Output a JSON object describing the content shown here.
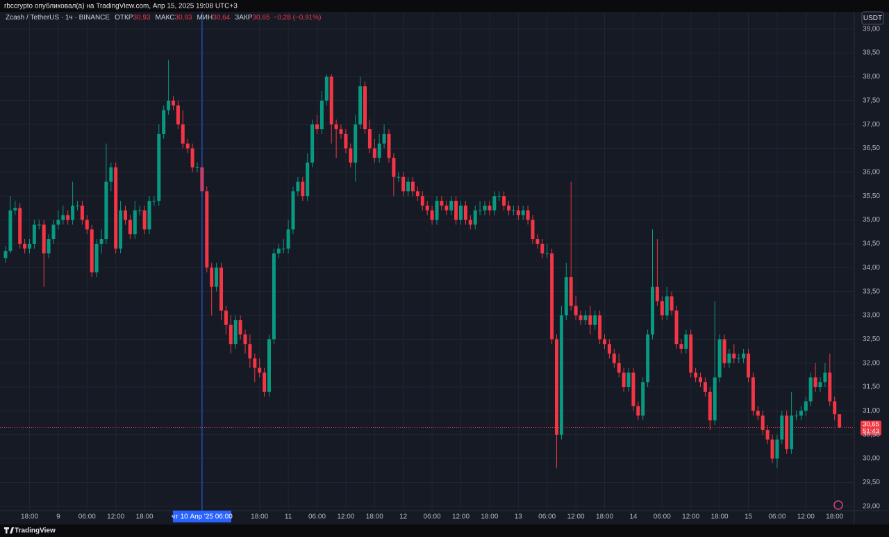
{
  "header": {
    "text": "rbccrypto опубликовал(а) на TradingView.com, Апр 15, 2025 19:08 UTC+3"
  },
  "footer": {
    "brand": "TradingView"
  },
  "chart_data": {
    "type": "candlestick",
    "symbol": "Zcash / TetherUS · 1ч · BINANCE",
    "legend_items": [
      {
        "name": "ОТКР",
        "value": 30.93,
        "label": "30,93"
      },
      {
        "name": "МАКС",
        "value": 30.93,
        "label": "30,93"
      },
      {
        "name": "МИН",
        "value": 30.64,
        "label": "30,64"
      },
      {
        "name": "ЗАКР",
        "value": 30.65,
        "label": "30,65"
      }
    ],
    "change": {
      "value": -0.28,
      "label": "−0,28 (−0,91%)"
    },
    "currency": "USDT",
    "price_tag": {
      "value": 30.65,
      "label": "30,65",
      "countdown": "51:43"
    },
    "up_color": "#089981",
    "down_color": "#f23645",
    "grid": true,
    "categories": [
      null,
      null,
      null,
      null,
      null,
      "18:00",
      null,
      null,
      null,
      null,
      null,
      "9",
      null,
      null,
      null,
      null,
      null,
      "06:00",
      null,
      null,
      null,
      null,
      null,
      "12:00",
      null,
      null,
      null,
      null,
      null,
      "18:00",
      null,
      null,
      null,
      null,
      null,
      null,
      null,
      null,
      null,
      null,
      null,
      "чт 10 Апр '25 06:00",
      null,
      null,
      null,
      null,
      null,
      null,
      null,
      null,
      null,
      null,
      null,
      "18:00",
      null,
      null,
      null,
      null,
      null,
      "11",
      null,
      null,
      null,
      null,
      null,
      "06:00",
      null,
      null,
      null,
      null,
      null,
      "12:00",
      null,
      null,
      null,
      null,
      null,
      "18:00",
      null,
      null,
      null,
      null,
      null,
      "12",
      null,
      null,
      null,
      null,
      null,
      "06:00",
      null,
      null,
      null,
      null,
      null,
      "12:00",
      null,
      null,
      null,
      null,
      null,
      "18:00",
      null,
      null,
      null,
      null,
      null,
      "13",
      null,
      null,
      null,
      null,
      null,
      "06:00",
      null,
      null,
      null,
      null,
      null,
      "12:00",
      null,
      null,
      null,
      null,
      null,
      "18:00",
      null,
      null,
      null,
      null,
      null,
      "14",
      null,
      null,
      null,
      null,
      null,
      "06:00",
      null,
      null,
      null,
      null,
      null,
      "12:00",
      null,
      null,
      null,
      null,
      null,
      "18:00",
      null,
      null,
      null,
      null,
      null,
      "15",
      null,
      null,
      null,
      null,
      null,
      "06:00",
      null,
      null,
      null,
      null,
      null,
      "12:00",
      null,
      null,
      null,
      null,
      null,
      "18:00",
      null
    ],
    "open": [
      34.2,
      34.35,
      35.2,
      35.25,
      34.5,
      34.4,
      34.5,
      34.9,
      34.9,
      34.3,
      34.6,
      34.9,
      35.0,
      35.1,
      35.0,
      35.3,
      35.3,
      35.0,
      34.8,
      33.9,
      34.5,
      34.6,
      35.8,
      36.1,
      34.4,
      35.2,
      35.0,
      34.7,
      35.2,
      35.2,
      34.8,
      35.4,
      35.4,
      36.8,
      37.3,
      37.5,
      37.4,
      37.0,
      36.6,
      36.5,
      36.1,
      36.1,
      35.6,
      34.0,
      33.6,
      34.0,
      33.1,
      32.8,
      32.4,
      32.9,
      32.6,
      32.4,
      32.1,
      31.9,
      31.8,
      31.4,
      32.5,
      34.3,
      34.4,
      34.4,
      34.8,
      35.6,
      35.8,
      35.5,
      36.2,
      37.0,
      36.9,
      37.5,
      38.0,
      37.0,
      36.9,
      36.8,
      36.5,
      36.2,
      37.0,
      37.8,
      36.9,
      36.5,
      36.3,
      36.6,
      36.8,
      36.3,
      35.9,
      35.9,
      35.6,
      35.8,
      35.6,
      35.5,
      35.3,
      35.2,
      35.0,
      35.4,
      35.3,
      35.2,
      35.4,
      35.0,
      35.3,
      35.0,
      34.9,
      35.2,
      35.2,
      35.3,
      35.2,
      35.5,
      35.5,
      35.3,
      35.2,
      35.2,
      35.1,
      35.2,
      35.0,
      34.6,
      34.5,
      34.3,
      34.3,
      32.5,
      30.5,
      33.0,
      33.8,
      33.2,
      33.0,
      32.9,
      33.0,
      32.8,
      33.0,
      32.5,
      32.4,
      32.2,
      32.0,
      31.8,
      31.5,
      31.8,
      31.1,
      30.9,
      31.6,
      32.6,
      33.6,
      33.3,
      33.0,
      33.4,
      33.1,
      32.4,
      32.3,
      32.6,
      31.8,
      31.7,
      31.6,
      31.4,
      30.8,
      31.7,
      32.5,
      32.0,
      32.2,
      32.1,
      32.1,
      32.2,
      31.7,
      31.0,
      30.9,
      30.6,
      30.4,
      30.0,
      30.4,
      30.9,
      30.2,
      30.9,
      30.9,
      31.0,
      31.2,
      31.7,
      31.5,
      31.6,
      31.8,
      31.2,
      30.93
    ],
    "high": [
      34.45,
      35.5,
      35.4,
      35.35,
      34.6,
      34.6,
      35.0,
      35.0,
      35.0,
      34.7,
      35.0,
      35.2,
      35.3,
      35.2,
      35.8,
      35.4,
      35.4,
      35.1,
      34.9,
      34.6,
      34.8,
      36.6,
      36.2,
      36.2,
      35.4,
      35.3,
      35.1,
      35.4,
      35.3,
      35.3,
      35.5,
      35.5,
      37.0,
      37.4,
      38.35,
      37.6,
      37.5,
      37.3,
      36.7,
      36.6,
      36.2,
      36.2,
      35.7,
      34.1,
      34.1,
      34.1,
      33.2,
      33.0,
      33.0,
      33.0,
      32.7,
      32.6,
      32.2,
      32.1,
      31.9,
      32.6,
      34.4,
      34.5,
      34.6,
      35.0,
      35.7,
      35.9,
      35.9,
      36.4,
      37.1,
      37.2,
      37.7,
      38.05,
      38.05,
      37.1,
      37.0,
      36.9,
      36.6,
      37.2,
      38.0,
      37.9,
      37.1,
      36.7,
      36.8,
      37.0,
      36.9,
      36.4,
      36.0,
      36.0,
      35.9,
      35.9,
      35.7,
      35.6,
      35.4,
      35.3,
      35.5,
      35.5,
      35.4,
      35.5,
      35.5,
      35.4,
      35.4,
      35.1,
      35.3,
      35.4,
      35.4,
      35.4,
      35.6,
      35.6,
      35.6,
      35.4,
      35.3,
      35.3,
      35.3,
      35.3,
      35.1,
      34.7,
      34.6,
      34.5,
      34.4,
      32.6,
      33.2,
      34.1,
      35.8,
      33.4,
      33.1,
      33.1,
      33.2,
      33.1,
      33.1,
      32.6,
      32.5,
      32.3,
      32.2,
      31.9,
      31.9,
      31.9,
      31.2,
      31.7,
      32.7,
      34.8,
      34.6,
      33.4,
      33.6,
      33.5,
      33.2,
      32.5,
      32.7,
      32.7,
      31.9,
      31.8,
      31.7,
      31.5,
      33.3,
      32.6,
      32.6,
      32.3,
      32.4,
      32.2,
      32.3,
      32.3,
      31.8,
      31.1,
      31.0,
      30.7,
      30.5,
      30.5,
      31.0,
      31.0,
      31.4,
      31.0,
      31.1,
      31.3,
      31.8,
      32.0,
      31.7,
      32.0,
      32.2,
      31.3,
      30.93
    ],
    "low": [
      34.1,
      34.3,
      35.1,
      34.4,
      34.3,
      34.3,
      34.4,
      34.8,
      33.6,
      34.2,
      34.5,
      34.8,
      34.9,
      34.9,
      34.9,
      35.2,
      34.9,
      34.7,
      33.8,
      33.8,
      34.3,
      34.5,
      35.6,
      34.3,
      34.3,
      34.9,
      34.6,
      34.6,
      35.1,
      34.7,
      34.7,
      35.3,
      35.3,
      36.7,
      37.2,
      37.3,
      36.9,
      36.5,
      36.4,
      36.0,
      36.0,
      35.5,
      33.9,
      33.0,
      33.5,
      32.9,
      32.6,
      32.2,
      32.3,
      32.5,
      32.2,
      31.9,
      31.6,
      31.7,
      31.3,
      31.3,
      32.4,
      34.2,
      34.3,
      34.3,
      34.7,
      35.5,
      35.4,
      35.4,
      36.1,
      36.8,
      36.8,
      37.4,
      36.6,
      36.3,
      36.7,
      36.4,
      36.1,
      35.8,
      36.9,
      36.8,
      36.4,
      36.2,
      36.2,
      36.5,
      36.2,
      35.5,
      35.8,
      35.5,
      35.5,
      35.5,
      35.4,
      35.2,
      35.1,
      34.9,
      34.9,
      35.2,
      35.1,
      35.1,
      34.9,
      34.9,
      34.9,
      34.8,
      34.8,
      35.1,
      35.1,
      35.1,
      35.1,
      35.4,
      35.2,
      35.1,
      35.1,
      35.0,
      35.0,
      34.9,
      34.5,
      34.4,
      34.2,
      34.2,
      32.4,
      29.8,
      30.4,
      32.9,
      33.1,
      32.9,
      32.8,
      32.8,
      32.6,
      32.7,
      32.4,
      32.3,
      32.1,
      31.9,
      31.7,
      31.4,
      31.4,
      31.0,
      30.8,
      30.8,
      31.5,
      32.5,
      33.2,
      32.9,
      32.9,
      33.0,
      32.3,
      32.2,
      32.2,
      31.7,
      31.6,
      31.5,
      31.3,
      30.6,
      30.7,
      31.6,
      31.9,
      31.9,
      32.0,
      32.0,
      32.0,
      31.6,
      30.9,
      30.8,
      30.5,
      30.3,
      29.9,
      29.8,
      30.3,
      30.1,
      30.1,
      30.8,
      30.8,
      30.9,
      31.1,
      31.4,
      31.4,
      31.5,
      31.1,
      30.8,
      30.64
    ],
    "close": [
      34.35,
      35.2,
      35.25,
      34.5,
      34.4,
      34.5,
      34.9,
      34.9,
      34.3,
      34.6,
      34.9,
      35.0,
      35.1,
      35.0,
      35.3,
      35.3,
      35.0,
      34.8,
      33.9,
      34.5,
      34.6,
      35.8,
      36.1,
      34.4,
      35.2,
      35.0,
      34.7,
      35.2,
      35.2,
      34.8,
      35.4,
      35.4,
      36.8,
      37.3,
      37.5,
      37.4,
      37.0,
      36.6,
      36.5,
      36.1,
      36.1,
      35.6,
      34.0,
      33.6,
      34.0,
      33.1,
      32.8,
      32.4,
      32.9,
      32.6,
      32.4,
      32.1,
      31.9,
      31.8,
      31.4,
      32.5,
      34.3,
      34.4,
      34.4,
      34.8,
      35.6,
      35.8,
      35.5,
      36.2,
      37.0,
      36.9,
      37.5,
      38.0,
      37.0,
      36.9,
      36.8,
      36.5,
      36.2,
      37.0,
      37.8,
      36.9,
      36.5,
      36.3,
      36.6,
      36.8,
      36.3,
      35.9,
      35.9,
      35.6,
      35.8,
      35.6,
      35.5,
      35.3,
      35.2,
      35.0,
      35.4,
      35.3,
      35.2,
      35.4,
      35.0,
      35.3,
      35.0,
      34.9,
      35.2,
      35.2,
      35.3,
      35.2,
      35.5,
      35.5,
      35.3,
      35.2,
      35.2,
      35.1,
      35.2,
      35.0,
      34.6,
      34.5,
      34.3,
      34.3,
      32.5,
      30.5,
      33.0,
      33.8,
      33.2,
      33.0,
      32.9,
      33.0,
      32.8,
      33.0,
      32.5,
      32.4,
      32.2,
      32.0,
      31.8,
      31.5,
      31.8,
      31.1,
      30.9,
      31.6,
      32.6,
      33.6,
      33.3,
      33.0,
      33.4,
      33.1,
      32.4,
      32.3,
      32.6,
      31.8,
      31.7,
      31.6,
      31.4,
      30.8,
      31.7,
      32.5,
      32.0,
      32.2,
      32.1,
      32.1,
      32.2,
      31.7,
      31.0,
      30.9,
      30.6,
      30.4,
      30.0,
      30.4,
      30.9,
      30.2,
      30.9,
      30.9,
      31.0,
      31.2,
      31.7,
      31.5,
      31.6,
      31.8,
      31.2,
      30.93,
      30.65
    ],
    "ylim": [
      28.91,
      39.36
    ],
    "yticks": [
      {
        "value": 29,
        "label": "29,00"
      },
      {
        "value": 29.5,
        "label": "29,50"
      },
      {
        "value": 30,
        "label": "30,00"
      },
      {
        "value": 30.5,
        "label": "30,50"
      },
      {
        "value": 31,
        "label": "31,00"
      },
      {
        "value": 31.5,
        "label": "31,50"
      },
      {
        "value": 32,
        "label": "32,00"
      },
      {
        "value": 32.5,
        "label": "32,50"
      },
      {
        "value": 33,
        "label": "33,00"
      },
      {
        "value": 33.5,
        "label": "33,50"
      },
      {
        "value": 34,
        "label": "34,00"
      },
      {
        "value": 34.5,
        "label": "34,50"
      },
      {
        "value": 35,
        "label": "35,00"
      },
      {
        "value": 35.5,
        "label": "35,50"
      },
      {
        "value": 36,
        "label": "36,00"
      },
      {
        "value": 36.5,
        "label": "36,50"
      },
      {
        "value": 37,
        "label": "37,00"
      },
      {
        "value": 37.5,
        "label": "37,50"
      },
      {
        "value": 38,
        "label": "38,00"
      },
      {
        "value": 38.5,
        "label": "38,50"
      },
      {
        "value": 39,
        "label": "39,00"
      }
    ]
  }
}
